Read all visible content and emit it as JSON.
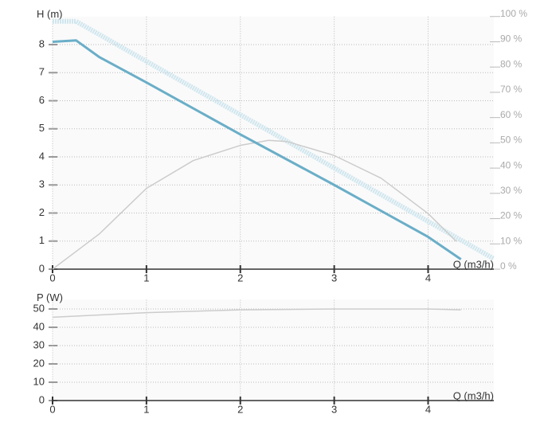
{
  "chart_data": [
    {
      "type": "line",
      "ylabel": "H (m)",
      "xlabel": "Q (m3/h)",
      "xlim": [
        0,
        4.7
      ],
      "xticks": [
        0,
        1,
        2,
        3,
        4
      ],
      "ylim": [
        0,
        9
      ],
      "yticks": [
        0,
        1,
        2,
        3,
        4,
        5,
        6,
        7,
        8
      ],
      "y2lim": [
        0,
        100
      ],
      "y2ticks": [
        {
          "value": 0,
          "label": "0 %"
        },
        {
          "value": 10,
          "label": "10 %"
        },
        {
          "value": 20,
          "label": "20 %"
        },
        {
          "value": 30,
          "label": "30 %"
        },
        {
          "value": 40,
          "label": "40 %"
        },
        {
          "value": 50,
          "label": "50 %"
        },
        {
          "value": 60,
          "label": "60 %"
        },
        {
          "value": 70,
          "label": "70 %"
        },
        {
          "value": 80,
          "label": "80 %"
        },
        {
          "value": 90,
          "label": "90 %"
        },
        {
          "value": 100,
          "label": "100 %"
        }
      ],
      "grid": true,
      "series": [
        {
          "color": "#cfe6ee",
          "style": "hatched",
          "x": [
            0,
            0.25,
            4.7
          ],
          "values": [
            8.83,
            8.83,
            0.37
          ]
        },
        {
          "color": "#cccccc",
          "axis": "y2",
          "x": [
            0,
            0.25,
            0.5,
            1,
            1.5,
            2,
            2.3,
            2.5,
            3,
            3.5,
            4,
            4.3
          ],
          "values": [
            0,
            7,
            14,
            32,
            43,
            49,
            51,
            50.5,
            45,
            36,
            22,
            11
          ]
        },
        {
          "color": "#6aaec8",
          "x": [
            0,
            0.25,
            0.5,
            1,
            2,
            3,
            4,
            4.35
          ],
          "values": [
            8.1,
            8.15,
            7.55,
            6.65,
            4.8,
            3.0,
            1.15,
            0.35
          ]
        }
      ]
    },
    {
      "type": "line",
      "ylabel": "P (W)",
      "xlabel": "Q (m3/h)",
      "xlim": [
        0,
        4.7
      ],
      "xticks": [
        0,
        1,
        2,
        3,
        4
      ],
      "ylim": [
        0,
        55
      ],
      "yticks": [
        0,
        10,
        20,
        30,
        40,
        50
      ],
      "grid": true,
      "series": [
        {
          "color": "#cccccc",
          "x": [
            0,
            1,
            2,
            3,
            4,
            4.35
          ],
          "values": [
            45.5,
            48,
            49.5,
            50,
            50,
            49.5
          ]
        }
      ]
    }
  ]
}
